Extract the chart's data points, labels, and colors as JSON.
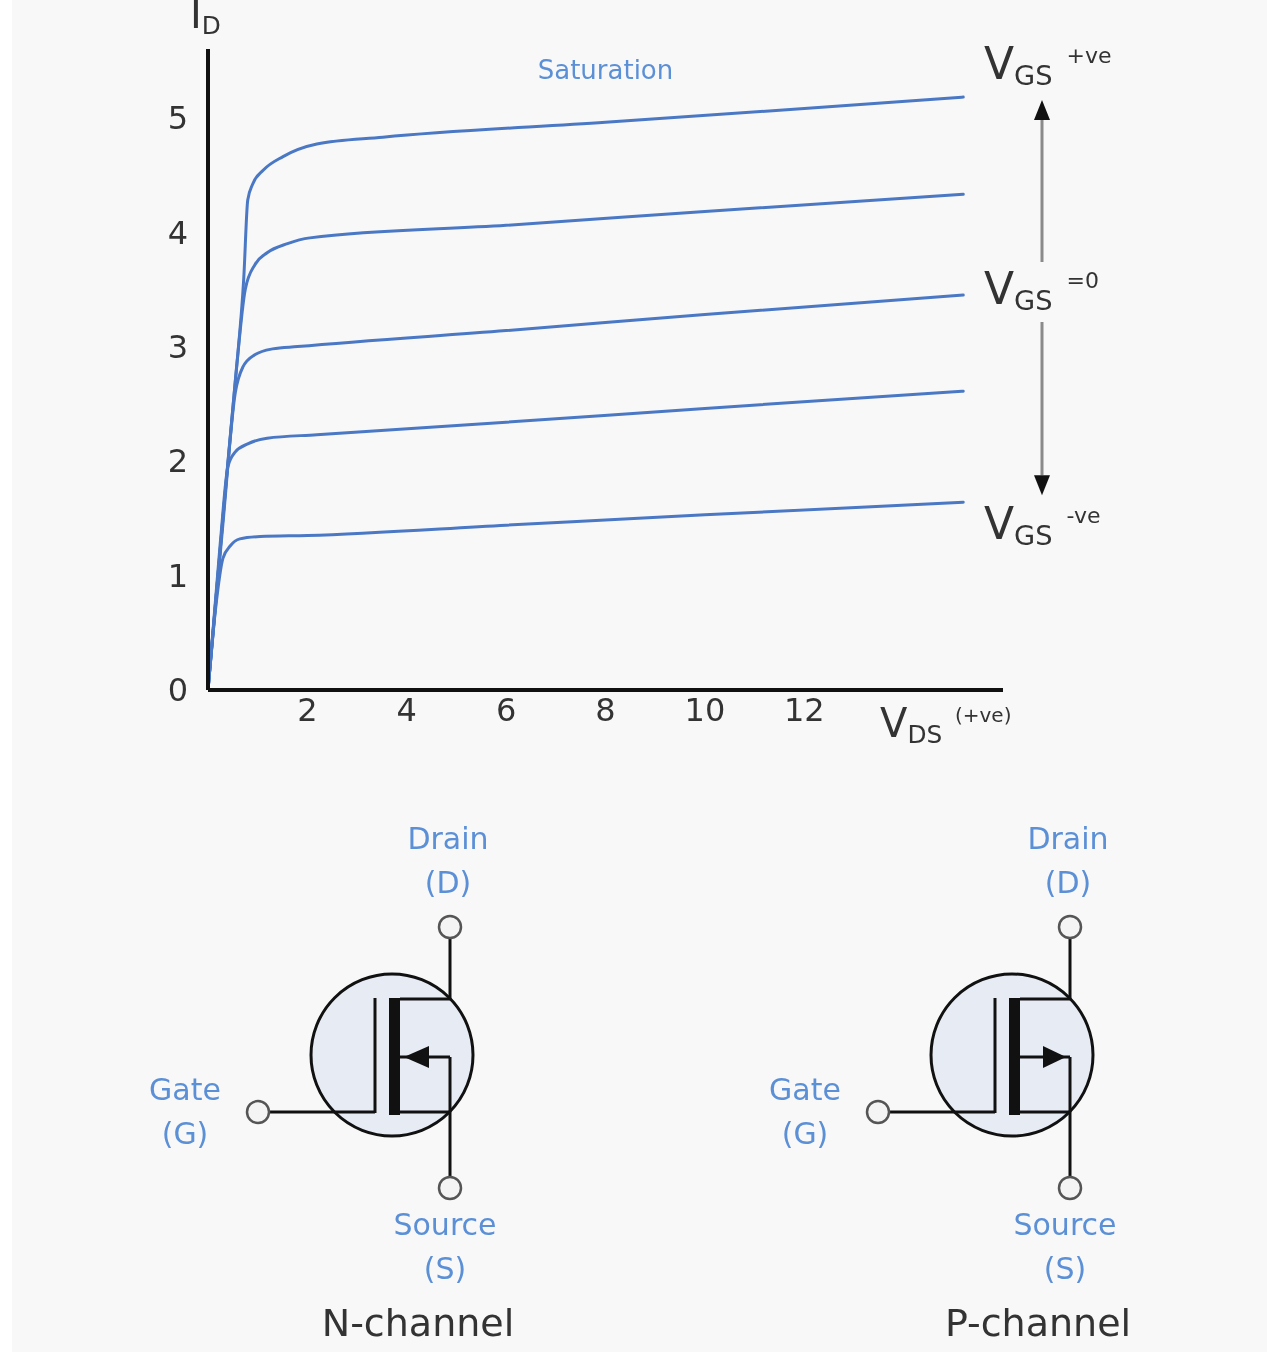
{
  "chart_data": {
    "type": "line",
    "xlabel": "V$_{DS}$ $^{(+ve)}$",
    "ylabel": "I$_{D}$",
    "xlim": [
      0,
      16
    ],
    "xticks": [
      2,
      4,
      6,
      8,
      10,
      12
    ],
    "ylim": [
      0,
      5.6
    ],
    "yticks": [
      0,
      1,
      2,
      3,
      4,
      5
    ],
    "marker": "none",
    "line_style": "solid",
    "series": [
      {
        "color": "#4a78c4",
        "x": [
          0,
          0.3,
          0.55,
          0.72,
          0.8,
          0.9,
          1.11,
          1.51,
          2.19,
          3.52,
          8,
          12,
          15.2
        ],
        "values": [
          0,
          1.5,
          2.7,
          3.6,
          4.28,
          4.42,
          4.54,
          4.66,
          4.77,
          4.83,
          4.96,
          5.08,
          5.18
        ]
      },
      {
        "color": "#4a78c4",
        "x": [
          0,
          0.3,
          0.55,
          0.75,
          0.95,
          1.19,
          1.6,
          2.05,
          6,
          10,
          15.2
        ],
        "values": [
          0,
          1.5,
          2.7,
          3.5,
          3.72,
          3.82,
          3.9,
          3.95,
          4.06,
          4.18,
          4.33
        ]
      },
      {
        "color": "#4a78c4",
        "x": [
          0,
          0.3,
          0.55,
          0.7,
          0.95,
          1.3,
          1.8,
          6,
          10,
          15.2
        ],
        "values": [
          0,
          1.45,
          2.6,
          2.82,
          2.93,
          2.98,
          3.0,
          3.14,
          3.28,
          3.45
        ]
      },
      {
        "color": "#4a78c4",
        "x": [
          0,
          0.25,
          0.4,
          0.55,
          0.8,
          1.19,
          2.19,
          6,
          10,
          15.2
        ],
        "values": [
          0,
          1.3,
          1.95,
          2.08,
          2.15,
          2.2,
          2.23,
          2.34,
          2.46,
          2.61
        ]
      },
      {
        "color": "#4a78c4",
        "x": [
          0,
          0.15,
          0.3,
          0.45,
          0.64,
          1.05,
          2,
          6,
          10,
          15.2
        ],
        "values": [
          0,
          0.7,
          1.15,
          1.26,
          1.32,
          1.34,
          1.35,
          1.44,
          1.53,
          1.64
        ]
      }
    ],
    "annotations": [
      "V$_{GS}$ $^{+ve}$",
      "V$_{GS}$ $^{=0}$",
      "V$_{GS}$ $^{-ve}$",
      "Saturation",
      "Drain\n(D)",
      "Gate\n(G)",
      "Source\n(S)",
      "N-channel",
      "Drain\n(D)",
      "Gate\n(G)",
      "Source\n(S)",
      "P-channel"
    ]
  }
}
